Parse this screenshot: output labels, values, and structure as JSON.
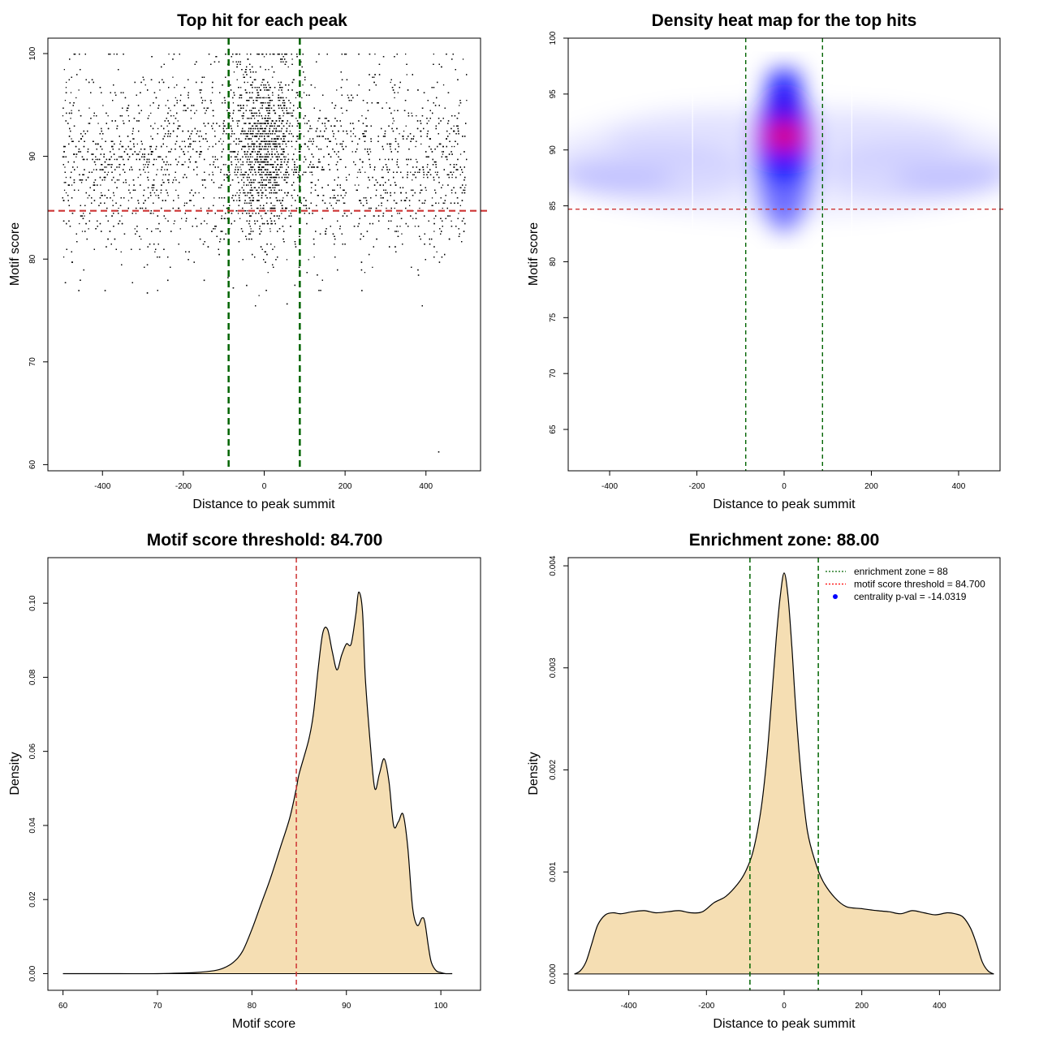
{
  "colors": {
    "points": "#000000",
    "enrichment_line": "#006400",
    "threshold_line": "#cd3333",
    "density_fill": "#f5deb3",
    "heat_low": "#ffffff",
    "heat_mid": "#0000ff",
    "heat_high": "#ff0000"
  },
  "chart_data": [
    {
      "id": "scatter",
      "type": "scatter",
      "title": "Top hit for each peak",
      "xlabel": "Distance to peak summit",
      "ylabel": "Motif score",
      "xlim": [
        -535,
        535
      ],
      "ylim": [
        59.4,
        101.5
      ],
      "xticks": [
        -400,
        -200,
        0,
        200,
        400
      ],
      "yticks": [
        60,
        70,
        80,
        90,
        100
      ],
      "xtick_labels": [
        "-400",
        "-200",
        "0",
        "200",
        "400"
      ],
      "ytick_labels": [
        "60",
        "70",
        "80",
        "90",
        "100"
      ],
      "vlines": [
        -88,
        88
      ],
      "hline": 84.7,
      "grid": false,
      "distribution": {
        "x_range": [
          -500,
          500
        ],
        "central_sd": 40,
        "central_fraction": 0.3,
        "score_mean": 89.5,
        "score_sd": 4.5,
        "score_range": [
          75.5,
          100
        ],
        "n_points": 9000
      },
      "outliers": [
        [
          -460,
          77
        ],
        [
          -395,
          77
        ],
        [
          -240,
          78
        ],
        [
          -45,
          77.5
        ],
        [
          55,
          75.7
        ],
        [
          430,
          61.3
        ],
        [
          240,
          77
        ],
        [
          -150,
          78
        ],
        [
          380,
          78.5
        ]
      ]
    },
    {
      "id": "heatmap",
      "type": "heatmap",
      "title": "Density heat map for the top hits",
      "xlabel": "Distance to peak summit",
      "ylabel": "Motif score",
      "xlim": [
        -495,
        495
      ],
      "ylim": [
        61.3,
        100
      ],
      "xticks": [
        -400,
        -200,
        0,
        200,
        400
      ],
      "yticks": [
        65,
        70,
        75,
        80,
        85,
        90,
        95,
        100
      ],
      "xtick_labels": [
        "-400",
        "-200",
        "0",
        "200",
        "400"
      ],
      "ytick_labels": [
        "65",
        "70",
        "75",
        "80",
        "85",
        "90",
        "95",
        "100"
      ],
      "vlines": [
        -88,
        88
      ],
      "hline": 84.7,
      "grid": false
    },
    {
      "id": "score_density",
      "type": "area",
      "title": "Motif score threshold: 84.700",
      "xlabel": "Motif score",
      "ylabel": "Density",
      "xlim": [
        58.4,
        104.2
      ],
      "ylim": [
        -0.0045,
        0.1123
      ],
      "xticks": [
        60,
        70,
        80,
        90,
        100
      ],
      "yticks": [
        0,
        0.02,
        0.04,
        0.06,
        0.08,
        0.1
      ],
      "xtick_labels": [
        "60",
        "70",
        "80",
        "90",
        "100"
      ],
      "ytick_labels": [
        "0.00",
        "0.02",
        "0.04",
        "0.06",
        "0.08",
        "0.10"
      ],
      "vlines": [
        84.7
      ],
      "grid": false,
      "x": [
        60,
        66,
        70,
        74,
        76,
        77,
        78,
        79,
        80,
        81,
        82,
        83,
        84,
        84.7,
        85,
        86,
        86.5,
        87,
        87.5,
        88,
        88.5,
        89,
        89.5,
        90,
        90.5,
        91,
        91.3,
        91.7,
        92,
        92.5,
        93,
        93.5,
        94,
        94.5,
        95,
        95.5,
        96,
        96.5,
        97,
        97.5,
        98,
        98.3,
        98.7,
        99,
        99.5,
        100,
        100.5,
        101.2
      ],
      "y": [
        0,
        0,
        0,
        0.0003,
        0.0008,
        0.0015,
        0.003,
        0.006,
        0.012,
        0.019,
        0.026,
        0.034,
        0.042,
        0.05,
        0.054,
        0.063,
        0.07,
        0.082,
        0.092,
        0.093,
        0.087,
        0.082,
        0.086,
        0.089,
        0.089,
        0.097,
        0.103,
        0.098,
        0.08,
        0.063,
        0.05,
        0.054,
        0.058,
        0.052,
        0.04,
        0.041,
        0.043,
        0.034,
        0.018,
        0.013,
        0.015,
        0.014,
        0.007,
        0.003,
        0.0008,
        0.0003,
        0,
        0
      ]
    },
    {
      "id": "distance_density",
      "type": "area",
      "title": "Enrichment zone: 88.00",
      "xlabel": "Distance to peak summit",
      "ylabel": "Density",
      "xlim": [
        -556,
        556
      ],
      "ylim": [
        -0.00016,
        0.00408
      ],
      "xticks": [
        -400,
        -200,
        0,
        200,
        400
      ],
      "yticks": [
        0,
        0.001,
        0.002,
        0.003,
        0.004
      ],
      "xtick_labels": [
        "-400",
        "-200",
        "0",
        "200",
        "400"
      ],
      "ytick_labels": [
        "0.000",
        "0.001",
        "0.002",
        "0.003",
        "0.004"
      ],
      "vlines": [
        -88,
        88
      ],
      "grid": false,
      "legend_position": "top-right",
      "legend": [
        {
          "label": "enrichment zone = 88",
          "color": "#006400",
          "marker": "line"
        },
        {
          "label": "motif score threshold = 84.700",
          "color": "#ff0000",
          "marker": "line"
        },
        {
          "label": "centrality p-val = -14.0319",
          "color": "#0000ff",
          "marker": "point"
        }
      ],
      "x": [
        -540,
        -525,
        -510,
        -495,
        -480,
        -460,
        -440,
        -420,
        -390,
        -360,
        -330,
        -300,
        -270,
        -240,
        -210,
        -180,
        -150,
        -120,
        -100,
        -80,
        -60,
        -45,
        -30,
        -20,
        -10,
        0,
        10,
        20,
        30,
        45,
        60,
        80,
        100,
        130,
        160,
        200,
        240,
        270,
        300,
        330,
        360,
        390,
        420,
        440,
        460,
        480,
        495,
        510,
        525,
        540
      ],
      "y": [
        0,
        3e-05,
        0.00012,
        0.0003,
        0.00048,
        0.00058,
        0.0006,
        0.00059,
        0.00061,
        0.00062,
        0.0006,
        0.00061,
        0.00062,
        0.0006,
        0.00061,
        0.0007,
        0.00076,
        0.00088,
        0.001,
        0.0012,
        0.0016,
        0.0021,
        0.0028,
        0.0033,
        0.0037,
        0.00393,
        0.0037,
        0.0032,
        0.0026,
        0.0019,
        0.0014,
        0.0011,
        0.00091,
        0.00075,
        0.00066,
        0.00064,
        0.00062,
        0.00061,
        0.00059,
        0.00062,
        0.0006,
        0.00058,
        0.0006,
        0.00059,
        0.00056,
        0.00045,
        0.0003,
        0.00012,
        3e-05,
        0
      ]
    }
  ]
}
